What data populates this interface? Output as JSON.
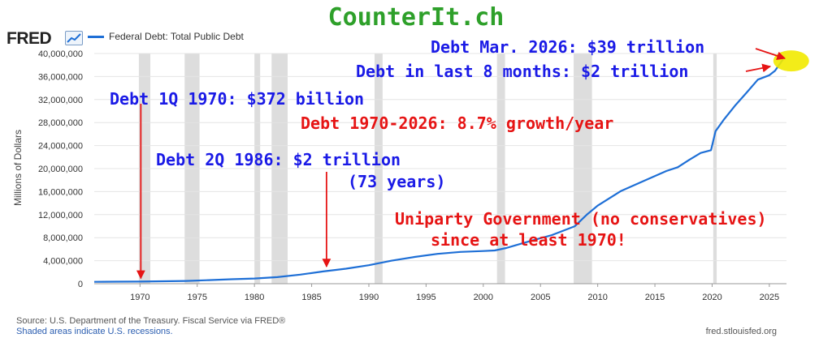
{
  "site_title": "CounterIt.ch",
  "fred": {
    "logo": "FRED",
    "legend_label": "Federal Debt: Total Public Debt",
    "source": "Source: U.S. Department of the Treasury. Fiscal Service via FRED®",
    "note": "Shaded areas indicate U.S. recessions.",
    "credit": "fred.stlouisfed.org"
  },
  "colors": {
    "series": "#1e6fd6",
    "recession": "#dddddd",
    "annotation_blue": "#1a1ae6",
    "annotation_red": "#e61414",
    "title_green": "#2ea02a",
    "highlight": "#f2ea00"
  },
  "chart_data": {
    "type": "line",
    "ylabel": "Millions of Dollars",
    "xlim": [
      1966,
      2026.5
    ],
    "ylim": [
      0,
      40000000
    ],
    "x_ticks": [
      1970,
      1975,
      1980,
      1985,
      1990,
      1995,
      2000,
      2005,
      2010,
      2015,
      2020,
      2025
    ],
    "y_ticks": [
      0,
      4000000,
      8000000,
      12000000,
      16000000,
      20000000,
      24000000,
      28000000,
      32000000,
      36000000,
      40000000
    ],
    "y_tick_labels": [
      "0",
      "4,000,000",
      "8,000,000",
      "12,000,000",
      "16,000,000",
      "20,000,000",
      "24,000,000",
      "28,000,000",
      "32,000,000",
      "36,000,000",
      "40,000,000"
    ],
    "grid": true,
    "recessions": [
      [
        1969.9,
        1970.9
      ],
      [
        1973.9,
        1975.2
      ],
      [
        1980.0,
        1980.5
      ],
      [
        1981.5,
        1982.9
      ],
      [
        1990.5,
        1991.2
      ],
      [
        2001.2,
        2001.9
      ],
      [
        2007.9,
        2009.5
      ],
      [
        2020.1,
        2020.4
      ]
    ],
    "series": [
      {
        "values": [
          [
            1966,
            320000
          ],
          [
            1968,
            347000
          ],
          [
            1970,
            372000
          ],
          [
            1972,
            427000
          ],
          [
            1974,
            475000
          ],
          [
            1976,
            620000
          ],
          [
            1978,
            772000
          ],
          [
            1980,
            908000
          ],
          [
            1982,
            1142000
          ],
          [
            1984,
            1573000
          ],
          [
            1986,
            2120000
          ],
          [
            1988,
            2602000
          ],
          [
            1990,
            3206000
          ],
          [
            1992,
            4002000
          ],
          [
            1994,
            4643000
          ],
          [
            1996,
            5182000
          ],
          [
            1998,
            5526000
          ],
          [
            2000,
            5674000
          ],
          [
            2001,
            5770000
          ],
          [
            2002,
            6198000
          ],
          [
            2004,
            7354000
          ],
          [
            2006,
            8451000
          ],
          [
            2008,
            9986000
          ],
          [
            2009,
            11910000
          ],
          [
            2010,
            13562000
          ],
          [
            2012,
            16066000
          ],
          [
            2014,
            17824000
          ],
          [
            2016,
            19573000
          ],
          [
            2017,
            20245000
          ],
          [
            2018,
            21516000
          ],
          [
            2019,
            22719000
          ],
          [
            2019.9,
            23200000
          ],
          [
            2020.3,
            26500000
          ],
          [
            2021,
            28430000
          ],
          [
            2022,
            30930000
          ],
          [
            2023,
            33170000
          ],
          [
            2024,
            35460000
          ],
          [
            2025,
            36220000
          ],
          [
            2025.5,
            37000000
          ],
          [
            2026.2,
            39000000
          ]
        ]
      }
    ],
    "annotations": [
      {
        "text": "Debt Mar. 2026: $39 trillion",
        "color": "blue"
      },
      {
        "text": "Debt in last 8 months: $2 trillion",
        "color": "blue"
      },
      {
        "text": "Debt 1Q 1970: $372 billion",
        "color": "blue"
      },
      {
        "text": "Debt 1970-2026: 8.7% growth/year",
        "color": "red"
      },
      {
        "text": "Debt 2Q 1986: $2 trillion",
        "color": "blue"
      },
      {
        "text": "(73 years)",
        "color": "blue"
      },
      {
        "text": "Uniparty Government (no conservatives)",
        "color": "red"
      },
      {
        "text": "since at least 1970!",
        "color": "red"
      }
    ]
  }
}
